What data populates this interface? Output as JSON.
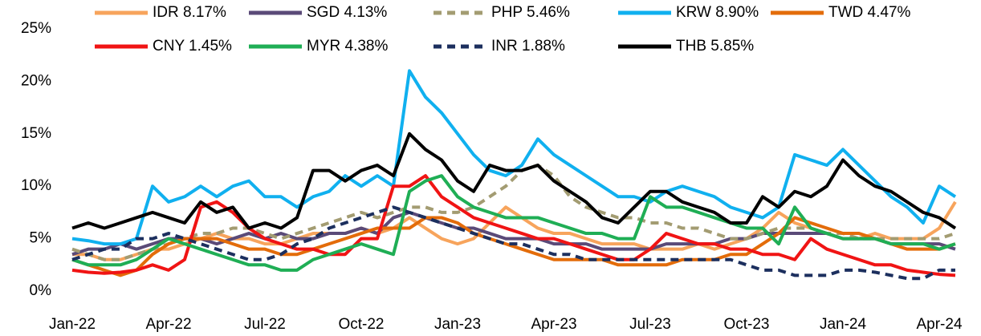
{
  "chart_data": {
    "type": "line",
    "categories": [
      "Jan-22",
      null,
      null,
      null,
      null,
      null,
      "Apr-22",
      null,
      null,
      null,
      null,
      null,
      "Jul-22",
      null,
      null,
      null,
      null,
      null,
      "Oct-22",
      null,
      null,
      null,
      null,
      null,
      "Jan-23",
      null,
      null,
      null,
      null,
      null,
      "Apr-23",
      null,
      null,
      null,
      null,
      null,
      "Jul-23",
      null,
      null,
      null,
      null,
      null,
      "Oct-23",
      null,
      null,
      null,
      null,
      null,
      "Jan-24",
      null,
      null,
      null,
      null,
      null,
      "Apr-24",
      null
    ],
    "ylim": [
      0,
      25
    ],
    "yticks": [
      {
        "value": 0,
        "label": "0%"
      },
      {
        "value": 5,
        "label": "5%"
      },
      {
        "value": 10,
        "label": "10%"
      },
      {
        "value": 15,
        "label": "15%"
      },
      {
        "value": 20,
        "label": "20%"
      },
      {
        "value": 25,
        "label": "25%"
      }
    ],
    "series": [
      {
        "name": "IDR 8.17%",
        "color": "#f7a45c",
        "dashed": false,
        "values": [
          3.5,
          3.5,
          3,
          3,
          3.5,
          4,
          4,
          4.5,
          5,
          5.5,
          5,
          5,
          4.5,
          4.5,
          5,
          5.5,
          5.5,
          5.5,
          6,
          5.5,
          6,
          7,
          6,
          5,
          4.5,
          5,
          6.5,
          8,
          7,
          6,
          5.5,
          5.5,
          5,
          4.5,
          4.5,
          4.5,
          4,
          4,
          4,
          4.5,
          4,
          4.5,
          5,
          6,
          7.5,
          6.5,
          6,
          5.5,
          5,
          5,
          5.5,
          5,
          5,
          5,
          6,
          8.5
        ]
      },
      {
        "name": "SGD 4.13%",
        "color": "#5a4a78",
        "dashed": false,
        "values": [
          3.5,
          4,
          4,
          4.5,
          4,
          4.5,
          5,
          5,
          5,
          4.5,
          5,
          5.5,
          5,
          5.5,
          5,
          5,
          5.5,
          5.5,
          6,
          5.5,
          7,
          7.5,
          7,
          6.5,
          6,
          6,
          5.5,
          5,
          5,
          5,
          4.5,
          4.5,
          4.5,
          4,
          4,
          4,
          4,
          4.5,
          4.5,
          4.5,
          4.5,
          5,
          5,
          5.5,
          5.5,
          5.5,
          5.5,
          5.5,
          5,
          5,
          5,
          4.5,
          4.5,
          4.5,
          4.5,
          4
        ]
      },
      {
        "name": "PHP 5.46%",
        "color": "#a39c72",
        "dashed": true,
        "values": [
          4,
          3.5,
          3,
          3,
          3.5,
          4,
          4.5,
          5,
          5.5,
          5.5,
          6,
          6,
          5.5,
          5,
          5.5,
          6,
          6.5,
          7,
          7.5,
          7,
          7.5,
          8,
          8,
          7.5,
          7.5,
          8,
          9,
          10,
          11.5,
          12,
          11,
          9,
          8,
          7.5,
          7,
          7,
          6.5,
          6.5,
          6,
          6,
          5.5,
          5,
          5,
          5.5,
          6,
          6,
          6,
          5.5,
          5.5,
          5,
          5,
          5,
          5,
          5,
          5,
          5.5
        ]
      },
      {
        "name": "KRW 8.90%",
        "color": "#10b0ef",
        "dashed": false,
        "values": [
          5,
          4.8,
          4.5,
          4.5,
          5,
          10,
          8.5,
          9,
          10,
          9,
          10,
          10.5,
          9,
          9,
          8,
          9,
          9.5,
          11,
          10,
          11,
          10,
          21,
          18.5,
          17,
          15,
          13,
          11.5,
          11,
          12,
          14.5,
          13,
          12,
          11,
          10,
          9,
          9,
          8.5,
          9.5,
          10,
          9.5,
          9,
          8,
          7.5,
          7,
          8,
          13,
          12.5,
          12,
          13.5,
          12,
          10.5,
          9,
          8,
          6.5,
          10,
          9
        ]
      },
      {
        "name": "TWD 4.47%",
        "color": "#e36c0a",
        "dashed": false,
        "values": [
          3,
          2.5,
          2,
          1.5,
          2,
          3.5,
          4.5,
          5,
          5,
          5,
          4.5,
          4,
          4,
          3.5,
          3.5,
          4,
          4.5,
          5,
          5.5,
          6,
          6,
          6,
          7,
          7,
          6.5,
          5.5,
          5,
          4.5,
          4,
          3.5,
          3,
          3,
          3,
          3,
          2.5,
          2.5,
          2.5,
          2.5,
          3,
          3,
          3,
          3.5,
          3.5,
          4.5,
          5.5,
          7,
          6.5,
          6,
          5.5,
          5.5,
          5,
          4.5,
          4,
          4,
          4,
          4.5
        ]
      },
      {
        "name": "CNY 1.45%",
        "color": "#f01414",
        "dashed": false,
        "values": [
          2,
          1.8,
          1.7,
          1.8,
          2,
          2.5,
          2,
          3,
          8,
          8.5,
          7.5,
          6,
          5,
          4.5,
          4,
          4,
          3.5,
          3.5,
          5,
          5,
          10,
          10,
          11,
          9,
          8,
          7,
          6.5,
          6,
          5.5,
          5,
          5,
          4.5,
          4,
          3.5,
          3,
          3,
          4,
          5.5,
          5,
          4.5,
          4.5,
          4,
          4,
          3.5,
          3.5,
          3,
          5,
          4,
          3.5,
          3,
          2.5,
          2.5,
          2,
          1.8,
          1.6,
          1.5
        ]
      },
      {
        "name": "MYR 4.38%",
        "color": "#1fae55",
        "dashed": false,
        "values": [
          3,
          2.5,
          2.5,
          2.5,
          3,
          4,
          5,
          4.5,
          4,
          3.5,
          3,
          2.5,
          2.5,
          2,
          2,
          3,
          3.5,
          4,
          4.5,
          4,
          3.5,
          9.5,
          10.5,
          11,
          9,
          8,
          7.5,
          7,
          7,
          7,
          6.5,
          6,
          5.5,
          5.5,
          5,
          5,
          9,
          8,
          8,
          7.5,
          7,
          6.5,
          6,
          6,
          4.5,
          8,
          6,
          5.5,
          5,
          5,
          5,
          4.5,
          4.5,
          4.5,
          4,
          4.5
        ]
      },
      {
        "name": "INR 1.88%",
        "color": "#1c2f5e",
        "dashed": true,
        "values": [
          3,
          3.5,
          4,
          4,
          5,
          5,
          5.5,
          5,
          4.5,
          4,
          3.5,
          3,
          3,
          3.5,
          4.5,
          5,
          6,
          6.5,
          7,
          7.5,
          8,
          7.5,
          7,
          6.5,
          6,
          5.5,
          5,
          4.5,
          4.5,
          4,
          3.5,
          3.5,
          3,
          3,
          3,
          3,
          3,
          3,
          3,
          3,
          3,
          3,
          2.5,
          2,
          2,
          1.5,
          1.5,
          1.5,
          2,
          2,
          1.8,
          1.5,
          1.2,
          1.2,
          2,
          2
        ]
      },
      {
        "name": "THB 5.85%",
        "color": "#000000",
        "dashed": false,
        "values": [
          6,
          6.5,
          6,
          6.5,
          7,
          7.5,
          7,
          6.5,
          8.5,
          7.5,
          8,
          6,
          6.5,
          6,
          7,
          11.5,
          11.5,
          10.5,
          11.5,
          12,
          11,
          15,
          13.5,
          12.5,
          10.5,
          9.5,
          12,
          11.5,
          11.5,
          12,
          10.5,
          9.5,
          8.5,
          7,
          6.5,
          8,
          9.5,
          9.5,
          8.5,
          8,
          7.5,
          6.5,
          6.5,
          9,
          8,
          9.5,
          9,
          10,
          12.5,
          11,
          10,
          9.5,
          8.5,
          7.5,
          7,
          6
        ]
      }
    ]
  }
}
